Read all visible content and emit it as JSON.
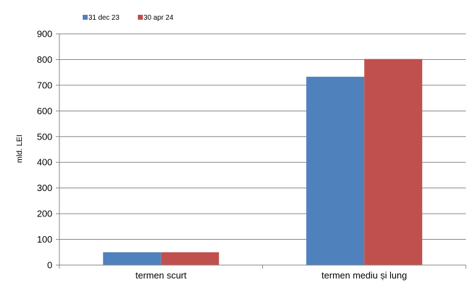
{
  "chart_data": {
    "type": "bar",
    "categories": [
      "termen scurt",
      "termen mediu și lung"
    ],
    "series": [
      {
        "name": "31 dec 23",
        "color": "#4F81BD",
        "values": [
          50,
          733
        ]
      },
      {
        "name": "30 apr 24",
        "color": "#C0504D",
        "values": [
          50,
          802
        ]
      }
    ],
    "ylabel": "mld. LEI",
    "ylim": [
      0,
      900
    ],
    "yticks": [
      0,
      100,
      200,
      300,
      400,
      500,
      600,
      700,
      800,
      900
    ],
    "grid": true,
    "legend_position": "top-left"
  }
}
